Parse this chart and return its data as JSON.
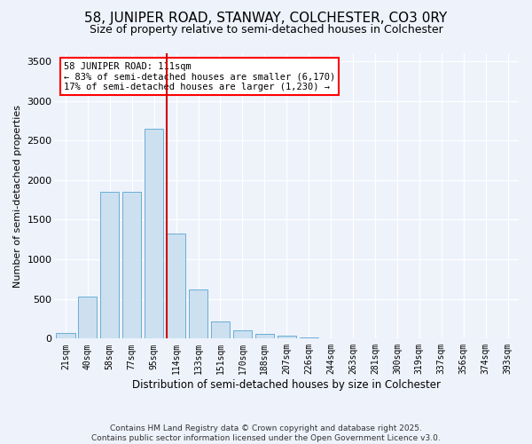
{
  "title_line1": "58, JUNIPER ROAD, STANWAY, COLCHESTER, CO3 0RY",
  "title_line2": "Size of property relative to semi-detached houses in Colchester",
  "xlabel": "Distribution of semi-detached houses by size in Colchester",
  "ylabel": "Number of semi-detached properties",
  "footer_line1": "Contains HM Land Registry data © Crown copyright and database right 2025.",
  "footer_line2": "Contains public sector information licensed under the Open Government Licence v3.0.",
  "annotation_title": "58 JUNIPER ROAD: 111sqm",
  "annotation_line1": "← 83% of semi-detached houses are smaller (6,170)",
  "annotation_line2": "17% of semi-detached houses are larger (1,230) →",
  "bar_color": "#cce0f0",
  "bar_edge_color": "#6aaed6",
  "marker_color": "#cc0000",
  "background_color": "#eef2fb",
  "categories": [
    "21sqm",
    "40sqm",
    "58sqm",
    "77sqm",
    "95sqm",
    "114sqm",
    "133sqm",
    "151sqm",
    "170sqm",
    "188sqm",
    "207sqm",
    "226sqm",
    "244sqm",
    "263sqm",
    "281sqm",
    "300sqm",
    "319sqm",
    "337sqm",
    "356sqm",
    "374sqm",
    "393sqm"
  ],
  "values": [
    75,
    530,
    1850,
    1850,
    2650,
    1330,
    620,
    220,
    110,
    65,
    40,
    18,
    8,
    4,
    2,
    1,
    0,
    0,
    0,
    0,
    0
  ],
  "ylim": [
    0,
    3600
  ],
  "yticks": [
    0,
    500,
    1000,
    1500,
    2000,
    2500,
    3000,
    3500
  ],
  "marker_bin_index": 5,
  "grid_color": "#ffffff",
  "annotation_fontsize": 7.5,
  "title1_fontsize": 11,
  "title2_fontsize": 9,
  "footer_fontsize": 6.5
}
